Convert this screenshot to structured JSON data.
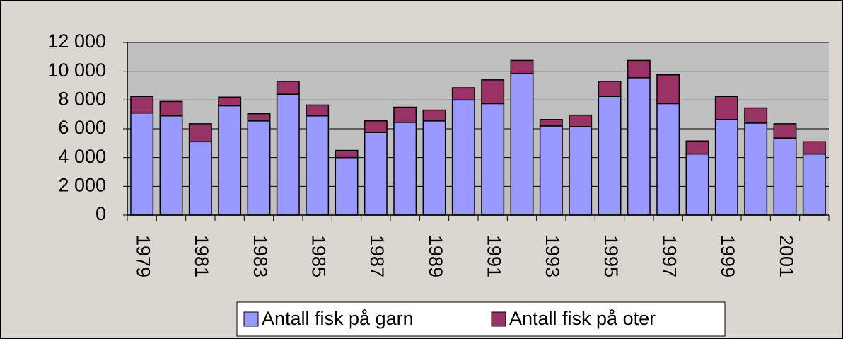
{
  "chart_data": {
    "type": "stacked-bar",
    "categories": [
      "1979",
      null,
      "1981",
      null,
      "1983",
      null,
      "1985",
      null,
      "1987",
      null,
      "1989",
      null,
      "1991",
      null,
      "1993",
      null,
      "1995",
      null,
      "1997",
      null,
      "1999",
      null,
      "2001",
      null
    ],
    "series": [
      {
        "name": "Antall fisk på garn",
        "color": "#9999ff",
        "values": [
          7100,
          6900,
          5100,
          7600,
          6550,
          8400,
          6900,
          4000,
          5750,
          6450,
          6550,
          8000,
          7750,
          9850,
          6200,
          6150,
          8250,
          9550,
          7750,
          4250,
          6650,
          6400,
          5350,
          4250
        ]
      },
      {
        "name": "Antall fisk på oter",
        "color": "#993366",
        "values": [
          1150,
          1000,
          1250,
          600,
          500,
          900,
          750,
          500,
          800,
          1050,
          750,
          850,
          1650,
          900,
          450,
          800,
          1050,
          1200,
          2000,
          900,
          1600,
          1050,
          1000,
          850
        ]
      }
    ],
    "ylim": [
      0,
      12000
    ],
    "yticks": [
      0,
      {
        "value": 2000,
        "label": "2 000"
      },
      {
        "value": 4000,
        "label": "4 000"
      },
      {
        "value": 6000,
        "label": "6 000"
      },
      {
        "value": 8000,
        "label": "8 000"
      },
      {
        "value": 10000,
        "label": "10 000"
      },
      {
        "value": 12000,
        "label": "12 000"
      }
    ],
    "grid": true
  }
}
